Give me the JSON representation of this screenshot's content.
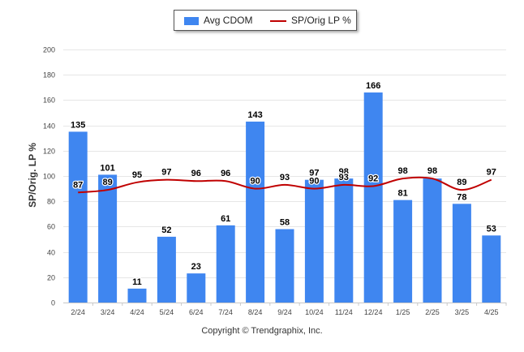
{
  "chart_data": {
    "type": "bar",
    "categories": [
      "2/24",
      "3/24",
      "4/24",
      "5/24",
      "6/24",
      "7/24",
      "8/24",
      "9/24",
      "10/24",
      "11/24",
      "12/24",
      "1/25",
      "2/25",
      "3/25",
      "4/25"
    ],
    "series": [
      {
        "name": "Avg CDOM",
        "type": "bar",
        "color": "#3f86f0",
        "values": [
          135,
          101,
          11,
          52,
          23,
          61,
          143,
          58,
          97,
          98,
          166,
          81,
          98,
          78,
          53
        ]
      },
      {
        "name": "SP/Orig LP %",
        "type": "line",
        "color": "#c00000",
        "values": [
          87,
          89,
          95,
          97,
          96,
          96,
          90,
          93,
          90,
          93,
          92,
          98,
          98,
          89,
          97
        ]
      }
    ],
    "ylabel": "SP/Orig. LP %",
    "ylim": [
      0,
      200
    ],
    "yticks": [
      0,
      20,
      40,
      60,
      80,
      100,
      120,
      140,
      160,
      180,
      200
    ],
    "grid": true,
    "legend_position": "top-center"
  },
  "footer": {
    "copyright": "Copyright © Trendgraphix, Inc."
  }
}
